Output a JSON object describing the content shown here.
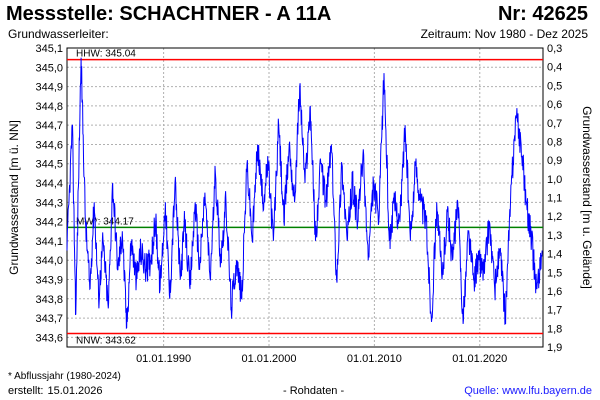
{
  "header": {
    "title": "Messstelle: SCHACHTNER - A 11A",
    "number": "Nr: 42625",
    "aquifer_label": "Grundwasserleiter:",
    "period": "Zeitraum: Nov 1980 - Dez 2025"
  },
  "footer": {
    "footnote": "* Abflussjahr (1980-2024)",
    "created_label": "erstellt:",
    "created_date": "15.01.2026",
    "raw_data": "- Rohdaten -",
    "source": "Quelle: www.lfu.bayern.de"
  },
  "colors": {
    "series": "#0000ff",
    "hhw": "#ff0000",
    "nnw": "#ff0000",
    "mw": "#008000",
    "grid": "#b0b0b0"
  },
  "chart_data": {
    "type": "line",
    "title": "",
    "ylabel": "Grundwasserstand [m ü. NN]",
    "ylabel_right": "Grundwasserstand [m u. Gelände]",
    "xlabel": "",
    "xlim": [
      "1980-11-01",
      "2025-12-31"
    ],
    "ylim": [
      343.55,
      345.1
    ],
    "ylim_right": [
      1.9,
      0.3
    ],
    "yticks": [
      "343,6",
      "343,7",
      "343,8",
      "343,9",
      "344,0",
      "344,1",
      "344,2",
      "344,3",
      "344,4",
      "344,5",
      "344,6",
      "344,7",
      "344,8",
      "344,9",
      "345,0",
      "345,1"
    ],
    "yticks_right": [
      "0,3",
      "0,4",
      "0,5",
      "0,6",
      "0,7",
      "0,8",
      "0,9",
      "1,0",
      "1,1",
      "1,2",
      "1,3",
      "1,4",
      "1,5",
      "1,6",
      "1,7",
      "1,8",
      "1,9"
    ],
    "xticks": [
      "01.01.1990",
      "01.01.2000",
      "01.01.2010",
      "01.01.2020"
    ],
    "grid": true,
    "reference_lines": [
      {
        "label": "HHW: 345.04",
        "value": 345.04
      },
      {
        "label": "MW*: 344.17",
        "value": 344.17
      },
      {
        "label": "NNW: 343.62",
        "value": 343.62
      }
    ],
    "series": [
      {
        "x": [
          "1980-11",
          "1981-05",
          "1981-09",
          "1982-03",
          "1982-08",
          "1983-01",
          "1983-06",
          "1983-11",
          "1984-04",
          "1984-10",
          "1985-03",
          "1985-09",
          "1986-02",
          "1986-07",
          "1986-12",
          "1987-06",
          "1987-11",
          "1988-05",
          "1988-10",
          "1989-04",
          "1989-09",
          "1990-03",
          "1990-08",
          "1991-02",
          "1991-08",
          "1992-01",
          "1992-07",
          "1993-01",
          "1993-06",
          "1993-12",
          "1994-06",
          "1994-12",
          "1995-06",
          "1995-12",
          "1996-06",
          "1996-12",
          "1997-06",
          "1997-12",
          "1998-06",
          "1998-12",
          "1999-06",
          "1999-12",
          "2000-06",
          "2000-12",
          "2001-06",
          "2001-12",
          "2002-06",
          "2002-12",
          "2003-06",
          "2003-12",
          "2004-06",
          "2004-12",
          "2005-06",
          "2005-12",
          "2006-06",
          "2006-12",
          "2007-06",
          "2007-12",
          "2008-06",
          "2008-12",
          "2009-06",
          "2009-12",
          "2010-06",
          "2010-12",
          "2011-06",
          "2011-12",
          "2012-06",
          "2012-12",
          "2013-06",
          "2013-12",
          "2014-06",
          "2014-12",
          "2015-06",
          "2015-12",
          "2016-06",
          "2016-12",
          "2017-06",
          "2017-12",
          "2018-06",
          "2018-12",
          "2019-06",
          "2019-12",
          "2020-06",
          "2020-12",
          "2021-06",
          "2021-12",
          "2022-06",
          "2022-12",
          "2023-06",
          "2023-12",
          "2024-06",
          "2024-12",
          "2025-06",
          "2025-12"
        ],
        "values": [
          344.05,
          344.7,
          343.72,
          345.05,
          344.2,
          343.85,
          344.3,
          343.8,
          344.1,
          343.75,
          344.4,
          343.95,
          344.15,
          343.65,
          344.1,
          343.9,
          344.05,
          343.95,
          344.0,
          344.2,
          343.85,
          344.3,
          343.8,
          344.4,
          343.9,
          344.2,
          343.85,
          344.3,
          343.95,
          344.35,
          343.9,
          344.45,
          344.0,
          344.3,
          343.75,
          344.0,
          343.8,
          344.5,
          344.1,
          344.6,
          344.3,
          344.5,
          344.1,
          344.7,
          344.2,
          344.6,
          344.3,
          344.9,
          344.4,
          344.8,
          344.1,
          344.5,
          344.3,
          344.6,
          343.9,
          344.5,
          344.1,
          344.4,
          344.2,
          344.55,
          344.0,
          344.4,
          344.2,
          344.97,
          344.1,
          344.3,
          344.2,
          344.7,
          344.1,
          344.5,
          344.3,
          344.2,
          343.68,
          344.3,
          343.9,
          344.25,
          344.0,
          344.3,
          343.67,
          344.15,
          343.9,
          344.0,
          343.95,
          344.2,
          343.85,
          344.05,
          343.7,
          344.3,
          344.75,
          344.6,
          344.3,
          344.1,
          343.85,
          344.05
        ]
      }
    ]
  }
}
